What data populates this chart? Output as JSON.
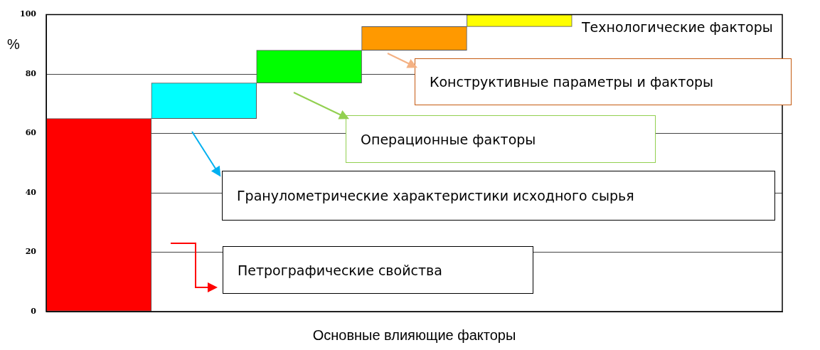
{
  "chart_data": {
    "type": "bar",
    "xlabel": "Основные влияющие факторы",
    "ylabel": "%",
    "categories": [
      null,
      null,
      null,
      null,
      null,
      null,
      null
    ],
    "base": [
      0,
      65,
      77,
      88,
      96,
      null,
      null
    ],
    "values": [
      65,
      12,
      11,
      8,
      4,
      null,
      null
    ],
    "colors": [
      "#ff0000",
      "#00ffff",
      "#00ff00",
      "#ff9900",
      "#ffff00",
      "#ffffff",
      "#ffffff"
    ],
    "ylim": [
      0,
      100
    ],
    "yticks": [
      0,
      20,
      40,
      60,
      80,
      100
    ],
    "grid": "y",
    "legend": false,
    "annotations": [
      "Петрографические свойства",
      "Гранулометрические характеристики исходного сырья",
      "Операционные факторы",
      "Конструктивные параметры и факторы",
      "Технологические факторы"
    ]
  }
}
